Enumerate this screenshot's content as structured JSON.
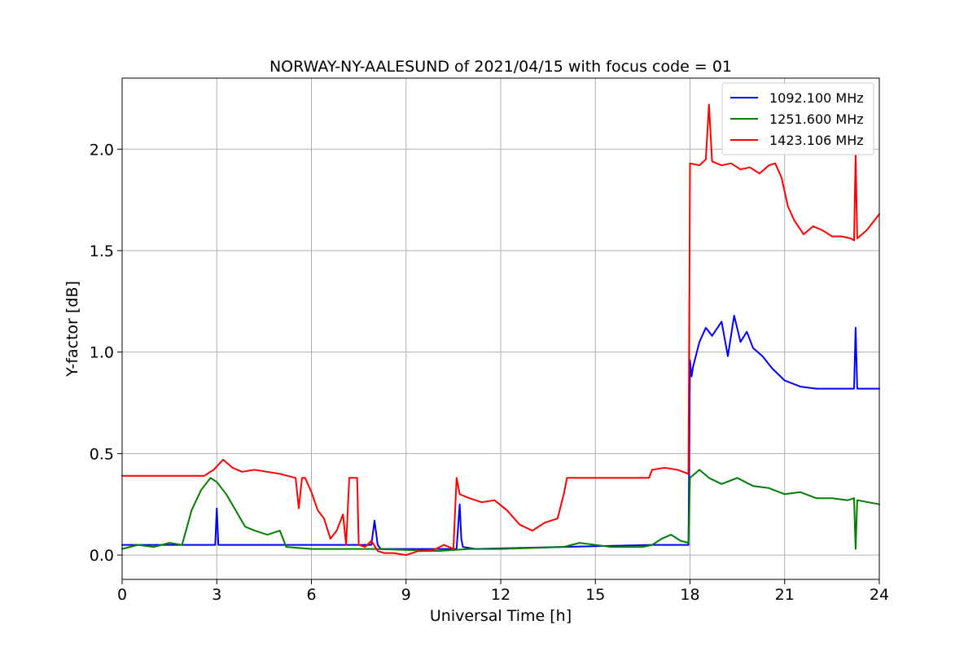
{
  "chart_data": {
    "type": "line",
    "title": "NORWAY-NY-AALESUND of 2021/04/15 with focus code = 01",
    "xlabel": "Universal Time [h]",
    "ylabel": "Y-factor [dB]",
    "xlim": [
      0,
      24
    ],
    "ylim": [
      -0.12,
      2.35
    ],
    "xticks": [
      0,
      3,
      6,
      9,
      12,
      15,
      18,
      21,
      24
    ],
    "xtick_labels": [
      "0",
      "3",
      "6",
      "9",
      "12",
      "15",
      "18",
      "21",
      "24"
    ],
    "yticks": [
      0.0,
      0.5,
      1.0,
      1.5,
      2.0
    ],
    "ytick_labels": [
      "0.0",
      "0.5",
      "1.0",
      "1.5",
      "2.0"
    ],
    "grid": true,
    "legend_position": "top-right",
    "series": [
      {
        "name": "1092.100 MHz",
        "color": "#0000ff",
        "x": [
          0,
          2.95,
          3.0,
          3.05,
          3.1,
          6.0,
          7.9,
          8.0,
          8.1,
          8.2,
          10.6,
          10.7,
          10.75,
          10.8,
          11.2,
          16.8,
          17.95,
          18.0,
          18.05,
          18.1,
          18.3,
          18.5,
          18.7,
          19.0,
          19.2,
          19.4,
          19.6,
          19.8,
          20.0,
          20.3,
          20.6,
          21.0,
          21.5,
          22.0,
          23.2,
          23.25,
          23.3,
          24
        ],
        "y": [
          0.05,
          0.05,
          0.23,
          0.05,
          0.05,
          0.05,
          0.05,
          0.17,
          0.05,
          0.03,
          0.03,
          0.25,
          0.08,
          0.04,
          0.03,
          0.05,
          0.05,
          0.96,
          0.88,
          0.93,
          1.05,
          1.12,
          1.08,
          1.15,
          0.98,
          1.18,
          1.05,
          1.1,
          1.02,
          0.98,
          0.92,
          0.86,
          0.83,
          0.82,
          0.82,
          1.12,
          0.82,
          0.82
        ]
      },
      {
        "name": "1251.600 MHz",
        "color": "#008000",
        "x": [
          0,
          0.5,
          1.0,
          1.5,
          1.9,
          2.2,
          2.5,
          2.8,
          3.0,
          3.3,
          3.6,
          3.9,
          4.2,
          4.6,
          5.0,
          5.2,
          6.0,
          8.0,
          10.0,
          11.0,
          12.0,
          14.0,
          14.5,
          15.5,
          16.5,
          16.8,
          17.1,
          17.4,
          17.7,
          17.95,
          18.0,
          18.3,
          18.6,
          19.0,
          19.5,
          20.0,
          20.5,
          21.0,
          21.5,
          22.0,
          22.5,
          23.0,
          23.2,
          23.25,
          23.3,
          24
        ],
        "y": [
          0.03,
          0.05,
          0.04,
          0.06,
          0.05,
          0.22,
          0.32,
          0.38,
          0.36,
          0.3,
          0.22,
          0.14,
          0.12,
          0.1,
          0.12,
          0.04,
          0.03,
          0.03,
          0.02,
          0.03,
          0.03,
          0.04,
          0.06,
          0.04,
          0.04,
          0.05,
          0.08,
          0.1,
          0.07,
          0.06,
          0.38,
          0.42,
          0.38,
          0.35,
          0.38,
          0.34,
          0.33,
          0.3,
          0.31,
          0.28,
          0.28,
          0.27,
          0.28,
          0.03,
          0.27,
          0.25
        ]
      },
      {
        "name": "1423.106 MHz",
        "color": "#ff0000",
        "x": [
          0,
          2.6,
          2.9,
          3.2,
          3.5,
          3.8,
          4.2,
          4.6,
          5.0,
          5.5,
          5.6,
          5.7,
          5.8,
          6.0,
          6.2,
          6.4,
          6.6,
          6.8,
          7.0,
          7.1,
          7.2,
          7.45,
          7.5,
          7.7,
          7.9,
          8.1,
          8.3,
          8.6,
          9.0,
          9.4,
          9.8,
          10.2,
          10.5,
          10.6,
          10.7,
          11.0,
          11.4,
          11.8,
          12.2,
          12.6,
          13.0,
          13.4,
          13.8,
          14.0,
          14.1,
          14.2,
          15.0,
          16.0,
          16.7,
          16.8,
          17.2,
          17.6,
          17.95,
          18.0,
          18.3,
          18.5,
          18.6,
          18.7,
          19.0,
          19.3,
          19.6,
          19.9,
          20.2,
          20.5,
          20.7,
          20.9,
          21.1,
          21.3,
          21.6,
          21.9,
          22.2,
          22.5,
          22.8,
          23.1,
          23.2,
          23.25,
          23.3,
          23.6,
          24
        ],
        "y": [
          0.39,
          0.39,
          0.42,
          0.47,
          0.43,
          0.41,
          0.42,
          0.41,
          0.4,
          0.38,
          0.23,
          0.38,
          0.38,
          0.31,
          0.22,
          0.18,
          0.08,
          0.12,
          0.2,
          0.05,
          0.38,
          0.38,
          0.05,
          0.04,
          0.07,
          0.02,
          0.01,
          0.01,
          0.0,
          0.02,
          0.02,
          0.05,
          0.03,
          0.38,
          0.3,
          0.28,
          0.26,
          0.27,
          0.22,
          0.15,
          0.12,
          0.16,
          0.18,
          0.3,
          0.38,
          0.38,
          0.38,
          0.38,
          0.38,
          0.42,
          0.43,
          0.42,
          0.4,
          1.93,
          1.92,
          1.95,
          2.22,
          1.94,
          1.92,
          1.93,
          1.9,
          1.91,
          1.88,
          1.92,
          1.93,
          1.86,
          1.72,
          1.65,
          1.58,
          1.62,
          1.6,
          1.57,
          1.57,
          1.56,
          1.55,
          1.97,
          1.56,
          1.6,
          1.68
        ]
      }
    ]
  }
}
